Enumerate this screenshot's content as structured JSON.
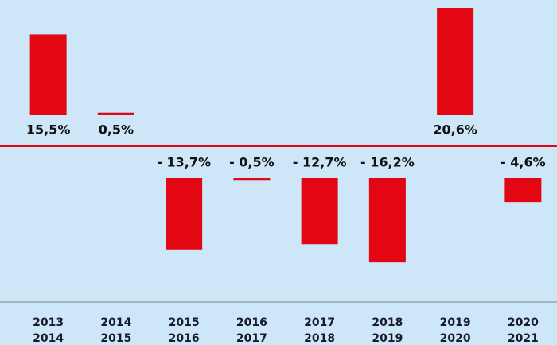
{
  "chart_data": {
    "type": "bar",
    "categories": [
      [
        "2013",
        "2014"
      ],
      [
        "2014",
        "2015"
      ],
      [
        "2015",
        "2016"
      ],
      [
        "2016",
        "2017"
      ],
      [
        "2017",
        "2018"
      ],
      [
        "2018",
        "2019"
      ],
      [
        "2019",
        "2020"
      ],
      [
        "2020",
        "2021"
      ]
    ],
    "values": [
      15.5,
      0.5,
      -13.7,
      -0.5,
      -12.7,
      -16.2,
      20.6,
      -4.6
    ],
    "value_labels": [
      "15,5%",
      "0,5%",
      "- 13,7%",
      "- 0,5%",
      "- 12,7%",
      "- 16,2%",
      "20,6%",
      "- 4,6%"
    ],
    "color": "#e30613"
  }
}
